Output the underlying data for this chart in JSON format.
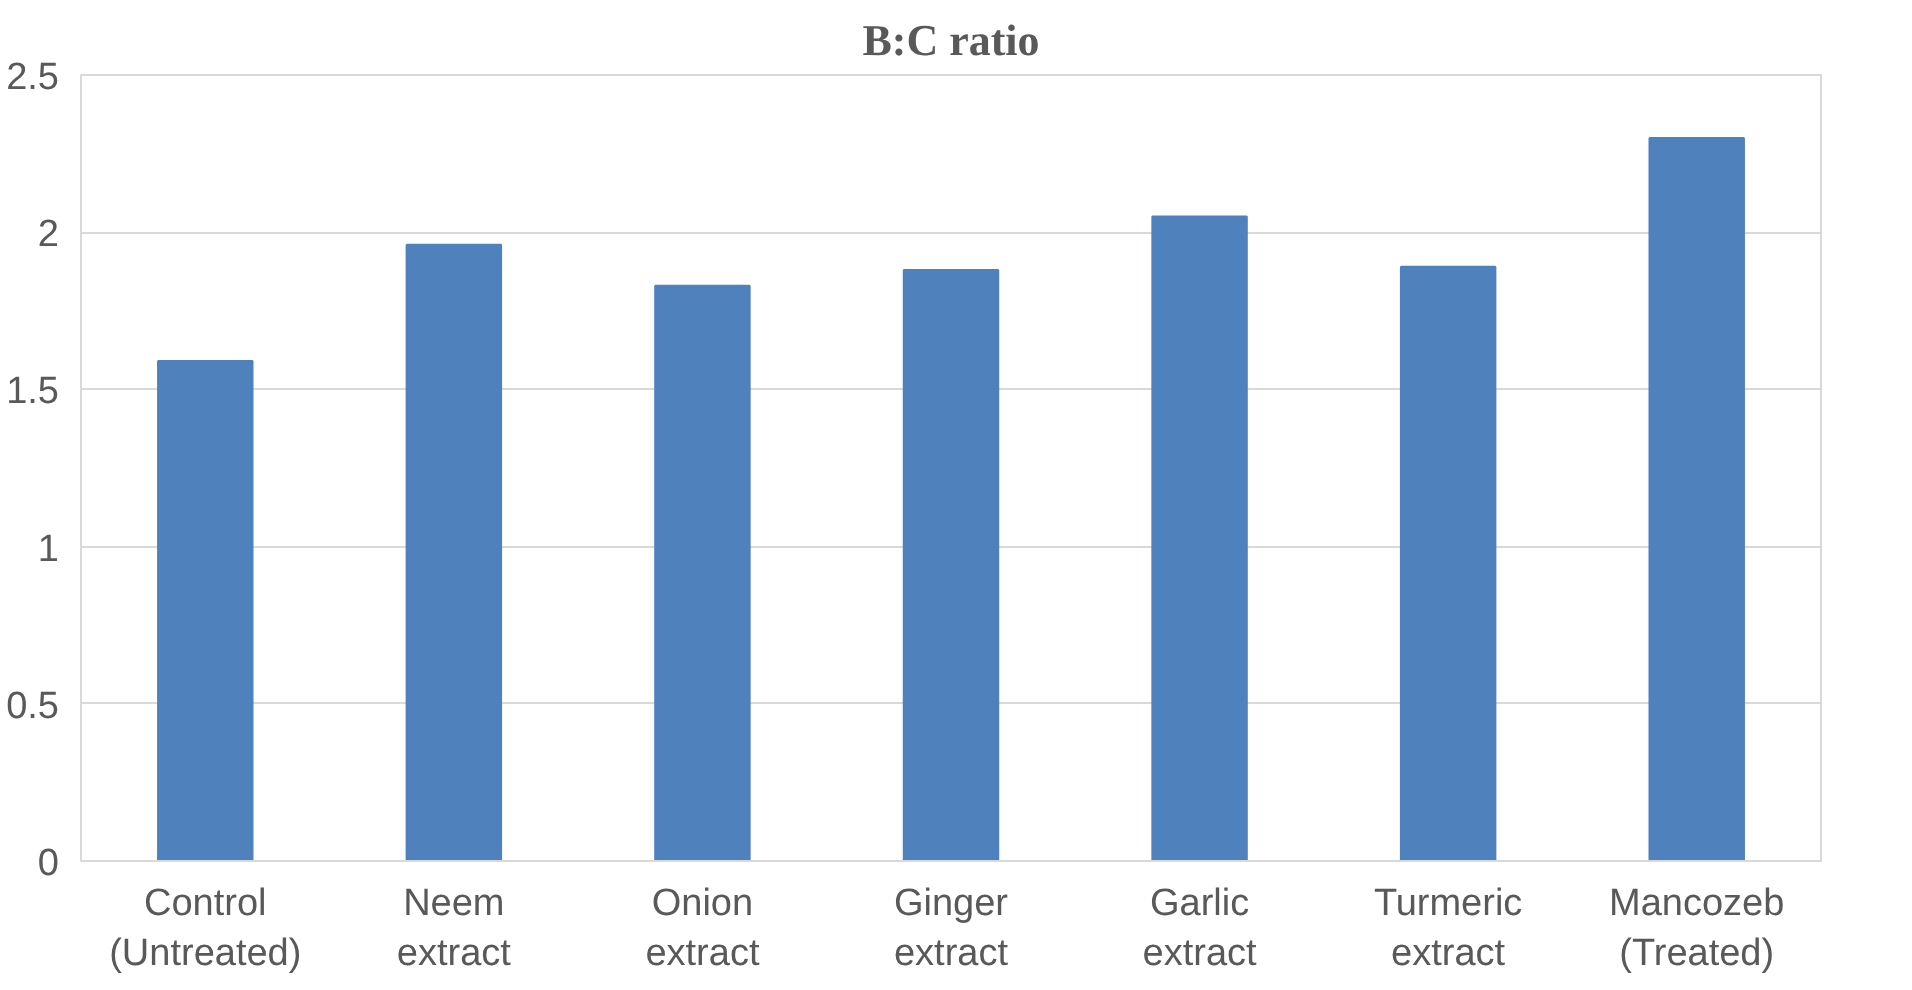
{
  "chart_data": {
    "type": "bar",
    "title": "B:C ratio",
    "categories": [
      "Control (Untreated)",
      "Neem extract",
      "Onion extract",
      "Ginger extract",
      "Garlic extract",
      "Turmeric extract",
      "Mancozeb (Treated)"
    ],
    "values": [
      1.59,
      1.96,
      1.83,
      1.88,
      2.05,
      1.89,
      2.3
    ],
    "color": "#4f81bd",
    "ylim": [
      0,
      2.5
    ],
    "yticks": [
      0,
      0.5,
      1,
      1.5,
      2,
      2.5
    ],
    "grid": "y"
  }
}
